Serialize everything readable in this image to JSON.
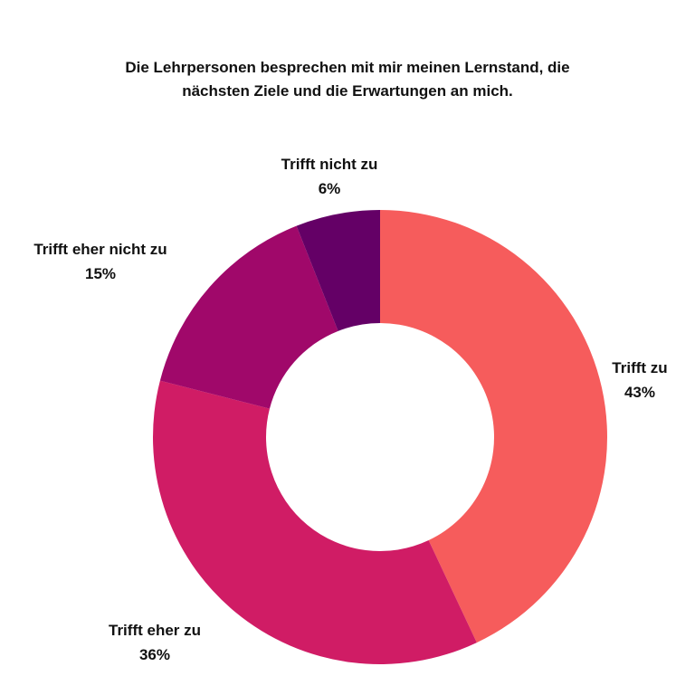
{
  "title_lines": [
    "Die Lehrpersonen besprechen mit mir meinen Lernstand, die",
    "nächsten Ziele und die Erwartungen an mich."
  ],
  "chart_data": {
    "type": "pie",
    "variant": "donut",
    "title": "Die Lehrpersonen besprechen mit mir meinen Lernstand, die nächsten Ziele und die Erwartungen an mich.",
    "categories": [
      "Trifft zu",
      "Trifft eher zu",
      "Trifft eher nicht zu",
      "Trifft nicht zu"
    ],
    "values": [
      43,
      36,
      15,
      6
    ],
    "labels": [
      "43%",
      "36%",
      "15%",
      "6%"
    ],
    "colors": [
      "#F65C5C",
      "#D01C65",
      "#A0086A",
      "#640066"
    ],
    "start_angle": "12 o'clock",
    "direction": "clockwise",
    "legend": "none"
  }
}
